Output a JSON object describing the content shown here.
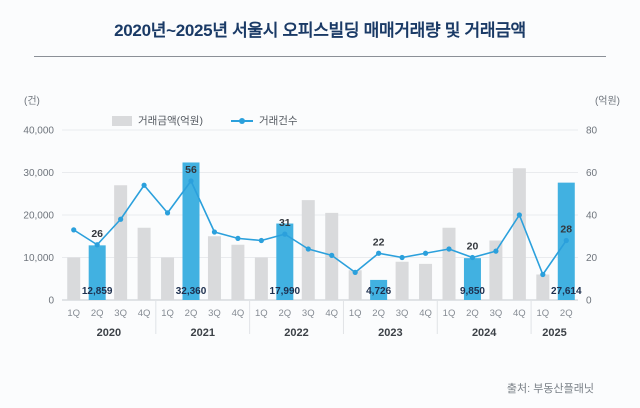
{
  "title": "2020년~2025년 서울시 오피스빌딩 매매거래량 및 거래금액",
  "source": "출처: 부동산플래닛",
  "chart_data": {
    "type": "combo",
    "series": [
      {
        "name": "거래금액(억원)",
        "type": "bar",
        "axis": "left"
      },
      {
        "name": "거래건수",
        "type": "line",
        "axis": "right"
      }
    ],
    "legend": [
      "거래금액(억원)",
      "거래건수"
    ],
    "left_axis": {
      "unit": "(건)",
      "ticks": [
        "0",
        "10,000",
        "20,000",
        "30,000",
        "40,000"
      ],
      "min": 0,
      "max": 40000
    },
    "right_axis": {
      "unit": "(억원)",
      "ticks": [
        "0",
        "20",
        "40",
        "60",
        "80"
      ],
      "min": 0,
      "max": 80
    },
    "colors": {
      "bar": "#d9dadc",
      "bar_highlight": "#41b1e1",
      "line": "#2ba0dc",
      "bar_label": "#1d2f4e",
      "count_label": "#33373d",
      "title": "#1a3a66"
    },
    "groups": [
      {
        "year": "2020",
        "quarters": [
          "1Q",
          "2Q",
          "3Q",
          "4Q"
        ],
        "amounts": [
          10000,
          12859,
          27000,
          17000
        ],
        "counts": [
          33,
          26,
          38,
          54
        ],
        "highlight_index": 1,
        "highlight_amount_label": "12,859",
        "highlight_count_label": "26"
      },
      {
        "year": "2021",
        "quarters": [
          "1Q",
          "2Q",
          "3Q",
          "4Q"
        ],
        "amounts": [
          10000,
          32360,
          15000,
          13000
        ],
        "counts": [
          41,
          56,
          32,
          29
        ],
        "highlight_index": 1,
        "highlight_amount_label": "32,360",
        "highlight_count_label": "56"
      },
      {
        "year": "2022",
        "quarters": [
          "1Q",
          "2Q",
          "3Q",
          "4Q"
        ],
        "amounts": [
          10000,
          17990,
          23500,
          20500
        ],
        "counts": [
          28,
          31,
          24,
          21
        ],
        "highlight_index": 1,
        "highlight_amount_label": "17,990",
        "highlight_count_label": "31"
      },
      {
        "year": "2023",
        "quarters": [
          "1Q",
          "2Q",
          "3Q",
          "4Q"
        ],
        "amounts": [
          7000,
          4726,
          9000,
          8500
        ],
        "counts": [
          13,
          22,
          20,
          22
        ],
        "highlight_index": 1,
        "highlight_amount_label": "4,726",
        "highlight_count_label": "22"
      },
      {
        "year": "2024",
        "quarters": [
          "1Q",
          "2Q",
          "3Q",
          "4Q"
        ],
        "amounts": [
          17000,
          9850,
          14000,
          31000
        ],
        "counts": [
          24,
          20,
          23,
          40
        ],
        "highlight_index": 1,
        "highlight_amount_label": "9,850",
        "highlight_count_label": "20"
      },
      {
        "year": "2025",
        "quarters": [
          "1Q",
          "2Q"
        ],
        "amounts": [
          6000,
          27614
        ],
        "counts": [
          12,
          28
        ],
        "highlight_index": 1,
        "highlight_amount_label": "27,614",
        "highlight_count_label": "28"
      }
    ]
  }
}
